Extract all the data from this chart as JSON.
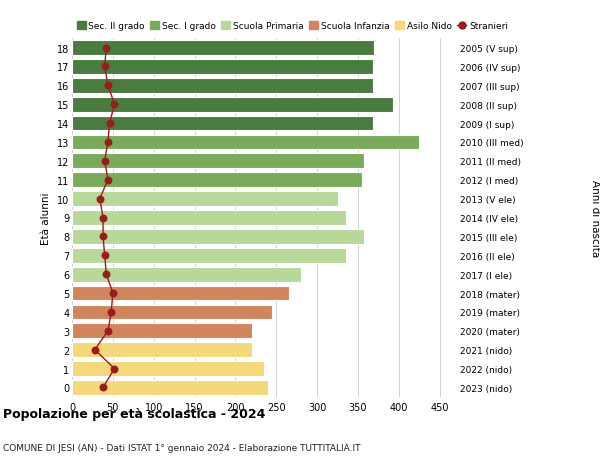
{
  "ages": [
    18,
    17,
    16,
    15,
    14,
    13,
    12,
    11,
    10,
    9,
    8,
    7,
    6,
    5,
    4,
    3,
    2,
    1,
    0
  ],
  "bar_values": [
    370,
    368,
    368,
    393,
    368,
    425,
    358,
    355,
    325,
    335,
    358,
    335,
    280,
    265,
    245,
    220,
    220,
    235,
    240
  ],
  "stranieri": [
    42,
    40,
    44,
    52,
    46,
    44,
    40,
    44,
    34,
    38,
    38,
    40,
    42,
    50,
    48,
    44,
    28,
    52,
    38
  ],
  "right_labels": [
    "2005 (V sup)",
    "2006 (IV sup)",
    "2007 (III sup)",
    "2008 (II sup)",
    "2009 (I sup)",
    "2010 (III med)",
    "2011 (II med)",
    "2012 (I med)",
    "2013 (V ele)",
    "2014 (IV ele)",
    "2015 (III ele)",
    "2016 (II ele)",
    "2017 (I ele)",
    "2018 (mater)",
    "2019 (mater)",
    "2020 (mater)",
    "2021 (nido)",
    "2022 (nido)",
    "2023 (nido)"
  ],
  "bar_colors": [
    "#4a7c3f",
    "#4a7c3f",
    "#4a7c3f",
    "#4a7c3f",
    "#4a7c3f",
    "#7aab5a",
    "#7aab5a",
    "#7aab5a",
    "#b8d89a",
    "#b8d89a",
    "#b8d89a",
    "#b8d89a",
    "#b8d89a",
    "#d2845a",
    "#d2845a",
    "#d2845a",
    "#f5d87a",
    "#f5d87a",
    "#f5d87a"
  ],
  "legend_labels": [
    "Sec. II grado",
    "Sec. I grado",
    "Scuola Primaria",
    "Scuola Infanzia",
    "Asilo Nido",
    "Stranieri"
  ],
  "legend_colors": [
    "#4a7c3f",
    "#7aab5a",
    "#b8d89a",
    "#d2845a",
    "#f5d87a",
    "#9b1c1c"
  ],
  "stranieri_color": "#9b1c1c",
  "title": "Popolazione per età scolastica - 2024",
  "subtitle": "COMUNE DI JESI (AN) - Dati ISTAT 1° gennaio 2024 - Elaborazione TUTTITALIA.IT",
  "ylabel_left": "Età alunni",
  "ylabel_right": "Anni di nascita",
  "xlim": [
    0,
    470
  ],
  "background_color": "#ffffff",
  "grid_color": "#cccccc"
}
